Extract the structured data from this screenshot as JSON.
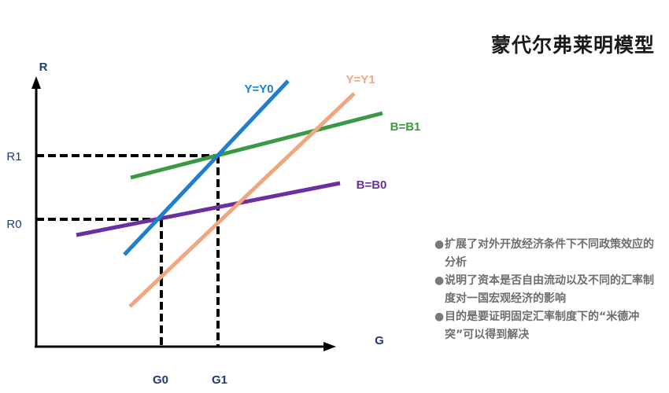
{
  "title": "蒙代尔弗莱明模型",
  "bullets": [
    "扩展了对外开放经济条件下不同政策效应的分析",
    "说明了资本是否自由流动以及不同的汇率制度对一国宏观经济的影响",
    "目的是要证明固定汇率制度下的“米德冲突”可以得到解决"
  ],
  "axes": {
    "y_label": "R",
    "x_label": "G"
  },
  "curves": [
    {
      "id": "y0",
      "label": "Y=Y0",
      "color": "#1f7fcf"
    },
    {
      "id": "y1",
      "label": "Y=Y1",
      "color": "#f0a67e"
    },
    {
      "id": "b1",
      "label": "B=B1",
      "color": "#3a9a44"
    },
    {
      "id": "b0",
      "label": "B=B0",
      "color": "#6a2fa0"
    }
  ],
  "levels": {
    "r1": "R1",
    "r0": "R0",
    "g0": "G0",
    "g1": "G1"
  }
}
